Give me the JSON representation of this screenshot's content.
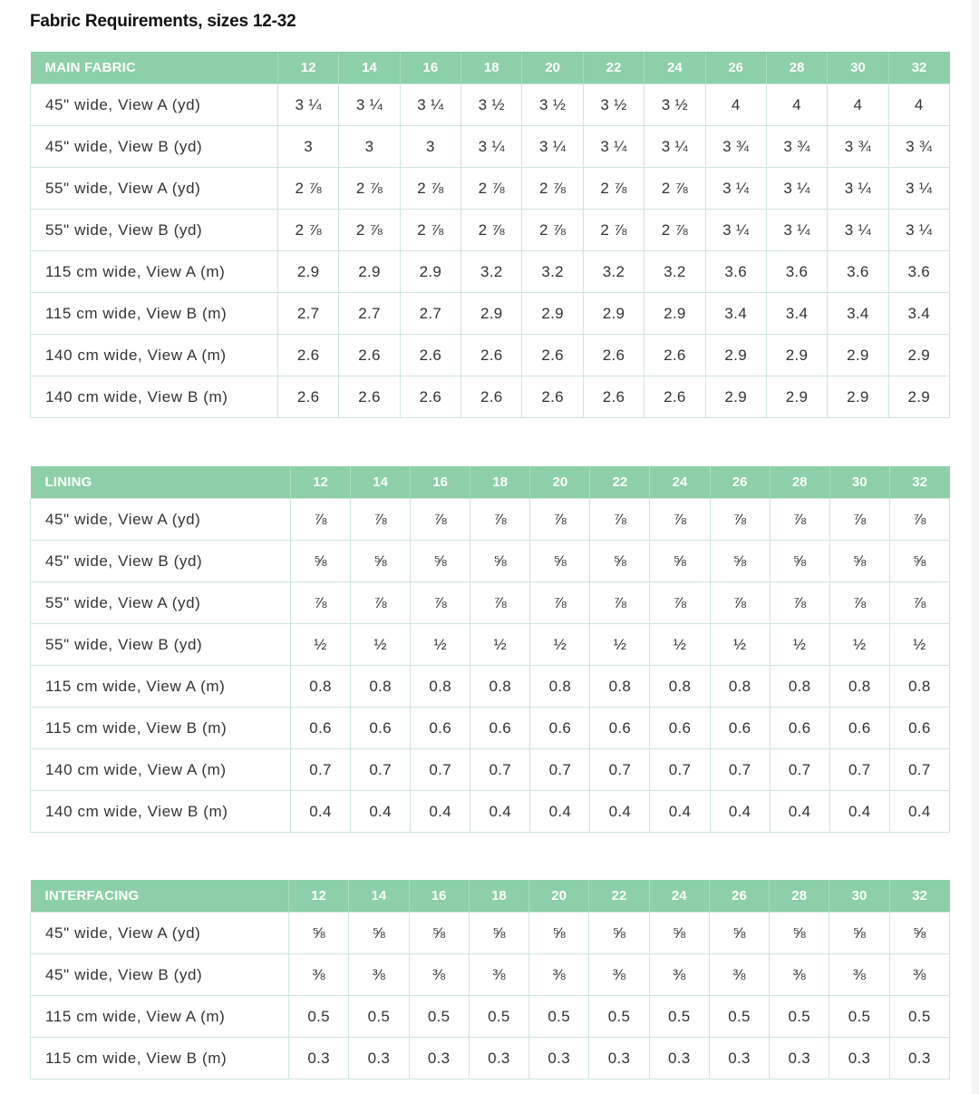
{
  "title": "Fabric Requirements, sizes 12-32",
  "sizes": [
    "12",
    "14",
    "16",
    "18",
    "20",
    "22",
    "24",
    "26",
    "28",
    "30",
    "32"
  ],
  "tables": {
    "main": {
      "heading": "MAIN FABRIC",
      "rows": [
        {
          "label": "45\" wide, View A (yd)",
          "values": [
            "3 ¼",
            "3 ¼",
            "3 ¼",
            "3 ½",
            "3 ½",
            "3 ½",
            "3 ½",
            "4",
            "4",
            "4",
            "4"
          ]
        },
        {
          "label": "45\" wide, View B (yd)",
          "values": [
            "3",
            "3",
            "3",
            "3 ¼",
            "3 ¼",
            "3 ¼",
            "3 ¼",
            "3 ¾",
            "3 ¾",
            "3 ¾",
            "3 ¾"
          ]
        },
        {
          "label": "55\" wide, View A (yd)",
          "values": [
            "2 ⅞",
            "2 ⅞",
            "2 ⅞",
            "2 ⅞",
            "2 ⅞",
            "2 ⅞",
            "2 ⅞",
            "3 ¼",
            "3 ¼",
            "3 ¼",
            "3 ¼"
          ]
        },
        {
          "label": "55\" wide, View B (yd)",
          "values": [
            "2 ⅞",
            "2 ⅞",
            "2 ⅞",
            "2 ⅞",
            "2 ⅞",
            "2 ⅞",
            "2 ⅞",
            "3 ¼",
            "3 ¼",
            "3 ¼",
            "3 ¼"
          ]
        },
        {
          "label": "115 cm wide, View A (m)",
          "values": [
            "2.9",
            "2.9",
            "2.9",
            "3.2",
            "3.2",
            "3.2",
            "3.2",
            "3.6",
            "3.6",
            "3.6",
            "3.6"
          ]
        },
        {
          "label": "115 cm wide, View B (m)",
          "values": [
            "2.7",
            "2.7",
            "2.7",
            "2.9",
            "2.9",
            "2.9",
            "2.9",
            "3.4",
            "3.4",
            "3.4",
            "3.4"
          ]
        },
        {
          "label": "140 cm wide, View A (m)",
          "values": [
            "2.6",
            "2.6",
            "2.6",
            "2.6",
            "2.6",
            "2.6",
            "2.6",
            "2.9",
            "2.9",
            "2.9",
            "2.9"
          ]
        },
        {
          "label": "140 cm wide, View B (m)",
          "values": [
            "2.6",
            "2.6",
            "2.6",
            "2.6",
            "2.6",
            "2.6",
            "2.6",
            "2.9",
            "2.9",
            "2.9",
            "2.9"
          ]
        }
      ]
    },
    "lining": {
      "heading": "LINING",
      "rows": [
        {
          "label": "45\" wide, View A (yd)",
          "values": [
            "⅞",
            "⅞",
            "⅞",
            "⅞",
            "⅞",
            "⅞",
            "⅞",
            "⅞",
            "⅞",
            "⅞",
            "⅞"
          ]
        },
        {
          "label": "45\" wide, View B (yd)",
          "values": [
            "⅝",
            "⅝",
            "⅝",
            "⅝",
            "⅝",
            "⅝",
            "⅝",
            "⅝",
            "⅝",
            "⅝",
            "⅝"
          ]
        },
        {
          "label": "55\" wide, View A (yd)",
          "values": [
            "⅞",
            "⅞",
            "⅞",
            "⅞",
            "⅞",
            "⅞",
            "⅞",
            "⅞",
            "⅞",
            "⅞",
            "⅞"
          ]
        },
        {
          "label": "55\" wide, View B (yd)",
          "values": [
            "½",
            "½",
            "½",
            "½",
            "½",
            "½",
            "½",
            "½",
            "½",
            "½",
            "½"
          ]
        },
        {
          "label": "115 cm wide, View A (m)",
          "values": [
            "0.8",
            "0.8",
            "0.8",
            "0.8",
            "0.8",
            "0.8",
            "0.8",
            "0.8",
            "0.8",
            "0.8",
            "0.8"
          ]
        },
        {
          "label": "115 cm wide, View B (m)",
          "values": [
            "0.6",
            "0.6",
            "0.6",
            "0.6",
            "0.6",
            "0.6",
            "0.6",
            "0.6",
            "0.6",
            "0.6",
            "0.6"
          ]
        },
        {
          "label": "140 cm wide, View A (m)",
          "values": [
            "0.7",
            "0.7",
            "0.7",
            "0.7",
            "0.7",
            "0.7",
            "0.7",
            "0.7",
            "0.7",
            "0.7",
            "0.7"
          ]
        },
        {
          "label": "140 cm wide, View B (m)",
          "values": [
            "0.4",
            "0.4",
            "0.4",
            "0.4",
            "0.4",
            "0.4",
            "0.4",
            "0.4",
            "0.4",
            "0.4",
            "0.4"
          ]
        }
      ]
    },
    "interfacing": {
      "heading": "INTERFACING",
      "rows": [
        {
          "label": "45\" wide, View A (yd)",
          "values": [
            "⅝",
            "⅝",
            "⅝",
            "⅝",
            "⅝",
            "⅝",
            "⅝",
            "⅝",
            "⅝",
            "⅝",
            "⅝"
          ]
        },
        {
          "label": "45\" wide, View B (yd)",
          "values": [
            "⅜",
            "⅜",
            "⅜",
            "⅜",
            "⅜",
            "⅜",
            "⅜",
            "⅜",
            "⅜",
            "⅜",
            "⅜"
          ]
        },
        {
          "label": "115 cm wide, View A (m)",
          "values": [
            "0.5",
            "0.5",
            "0.5",
            "0.5",
            "0.5",
            "0.5",
            "0.5",
            "0.5",
            "0.5",
            "0.5",
            "0.5"
          ]
        },
        {
          "label": "115 cm wide, View B (m)",
          "values": [
            "0.3",
            "0.3",
            "0.3",
            "0.3",
            "0.3",
            "0.3",
            "0.3",
            "0.3",
            "0.3",
            "0.3",
            "0.3"
          ]
        }
      ]
    }
  },
  "colors": {
    "header_bg": "#8ccfa8",
    "header_text": "#ffffff",
    "grid_line": "#cfe6da",
    "cell_text": "#333333"
  }
}
